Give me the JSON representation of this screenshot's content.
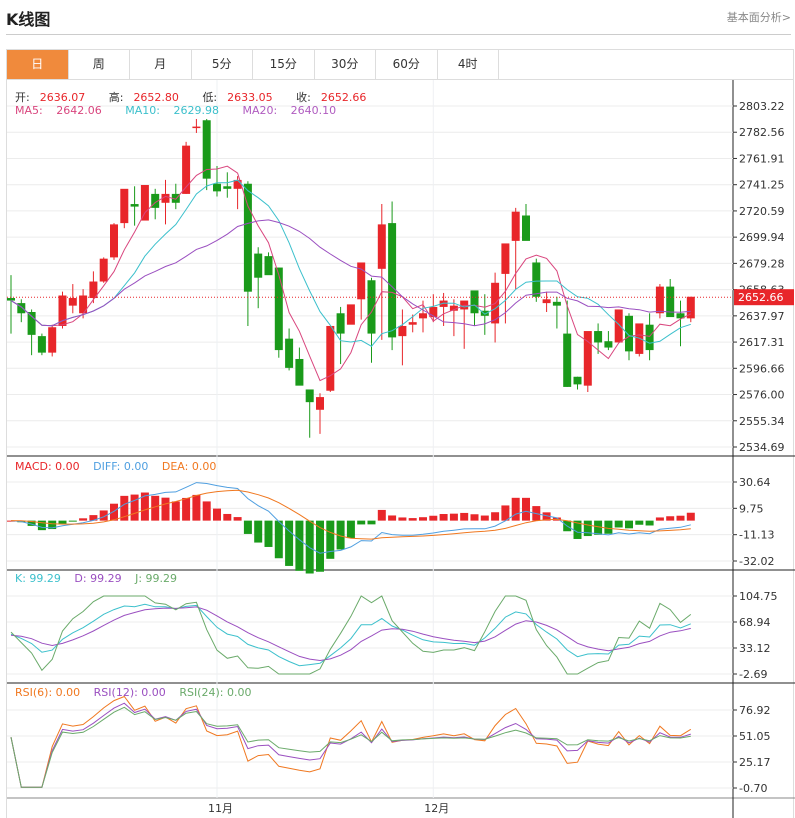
{
  "header": {
    "title": "K线图",
    "link_label": "基本面分析>"
  },
  "tabs": [
    {
      "label": "日",
      "active": true
    },
    {
      "label": "周"
    },
    {
      "label": "月"
    },
    {
      "label": "5分"
    },
    {
      "label": "15分"
    },
    {
      "label": "30分"
    },
    {
      "label": "60分"
    },
    {
      "label": "4时"
    }
  ],
  "ohlc_legend": {
    "open_label": "开:",
    "open": "2636.07",
    "high_label": "高:",
    "high": "2652.80",
    "low_label": "低:",
    "low": "2633.05",
    "close_label": "收:",
    "close": "2652.66"
  },
  "ma_legend": {
    "ma5_label": "MA5:",
    "ma5": "2642.06",
    "ma10_label": "MA10:",
    "ma10": "2629.98",
    "ma20_label": "MA20:",
    "ma20": "2640.10"
  },
  "macd_legend": {
    "macd": "MACD: 0.00",
    "diff": "DIFF: 0.00",
    "dea": "DEA: 0.00"
  },
  "kdj_legend": {
    "k": "K: 99.29",
    "d": "D: 99.29",
    "j": "J: 99.29"
  },
  "rsi_legend": {
    "rsi6": "RSI(6): 0.00",
    "rsi12": "RSI(12): 0.00",
    "rsi24": "RSI(24): 0.00"
  },
  "colors": {
    "up": "#e8262a",
    "down": "#1a9a1a",
    "accent": "#f08a3c",
    "ma5": "#d9467e",
    "ma10": "#3cc0cc",
    "ma20": "#9a4fc0",
    "diff": "#4f9fe0",
    "dea": "#f07820",
    "k": "#3cc0cc",
    "d": "#9a4fc0",
    "j": "#6aaa6a",
    "rsi6": "#f07820",
    "rsi12": "#9a4fc0",
    "rsi24": "#6aaa6a"
  },
  "chart_data": [
    {
      "type": "candlestick",
      "title": "K线图 (日)",
      "y_ticks": [
        "2803.22",
        "2782.56",
        "2761.91",
        "2741.25",
        "2720.59",
        "2699.94",
        "2679.28",
        "2658.63",
        "2637.97",
        "2617.31",
        "2596.66",
        "2576.00",
        "2555.34",
        "2534.69"
      ],
      "current_price": "2652.66",
      "x_labels": [
        {
          "label": "11月",
          "index": 20
        },
        {
          "label": "12月",
          "index": 41
        }
      ],
      "candles": [
        [
          2652,
          2670,
          2624,
          2650
        ],
        [
          2648,
          2651,
          2633,
          2640
        ],
        [
          2641,
          2643,
          2607,
          2623
        ],
        [
          2622,
          2624,
          2607,
          2609
        ],
        [
          2609,
          2631,
          2606,
          2629
        ],
        [
          2630,
          2657,
          2628,
          2654
        ],
        [
          2646,
          2663,
          2640,
          2652
        ],
        [
          2640,
          2659,
          2636,
          2654
        ],
        [
          2652,
          2673,
          2648,
          2665
        ],
        [
          2665,
          2684,
          2664,
          2683
        ],
        [
          2684,
          2711,
          2682,
          2710
        ],
        [
          2711,
          2737,
          2707,
          2738
        ],
        [
          2726,
          2740,
          2709,
          2724
        ],
        [
          2713,
          2741,
          2714,
          2741
        ],
        [
          2734,
          2738,
          2714,
          2723
        ],
        [
          2727,
          2745,
          2710,
          2734
        ],
        [
          2734,
          2742,
          2722,
          2727
        ],
        [
          2734,
          2775,
          2734,
          2772
        ],
        [
          2787,
          2793,
          2782,
          2787
        ],
        [
          2792,
          2793,
          2737,
          2746
        ],
        [
          2742,
          2756,
          2732,
          2736
        ],
        [
          2740,
          2751,
          2731,
          2738
        ],
        [
          2738,
          2748,
          2722,
          2745
        ],
        [
          2742,
          2744,
          2630,
          2657
        ],
        [
          2687,
          2692,
          2644,
          2668
        ],
        [
          2685,
          2688,
          2678,
          2670
        ],
        [
          2676,
          2676,
          2605,
          2611
        ],
        [
          2620,
          2628,
          2595,
          2597
        ],
        [
          2604,
          2613,
          2588,
          2583
        ],
        [
          2580,
          2579,
          2542,
          2570
        ],
        [
          2564,
          2577,
          2545,
          2574
        ],
        [
          2579,
          2610,
          2578,
          2630
        ],
        [
          2640,
          2645,
          2600,
          2624
        ],
        [
          2631,
          2646,
          2634,
          2647
        ],
        [
          2651,
          2668,
          2635,
          2680
        ],
        [
          2666,
          2668,
          2601,
          2624
        ],
        [
          2675,
          2726,
          2619,
          2710
        ],
        [
          2711,
          2728,
          2611,
          2621
        ],
        [
          2622,
          2643,
          2599,
          2630
        ],
        [
          2631,
          2639,
          2625,
          2633
        ],
        [
          2636,
          2650,
          2625,
          2640
        ],
        [
          2637,
          2655,
          2633,
          2645
        ],
        [
          2645,
          2656,
          2630,
          2650
        ],
        [
          2642,
          2651,
          2622,
          2646
        ],
        [
          2643,
          2648,
          2612,
          2650
        ],
        [
          2658,
          2657,
          2630,
          2640
        ],
        [
          2642,
          2655,
          2623,
          2638
        ],
        [
          2632,
          2672,
          2617,
          2664
        ],
        [
          2671,
          2690,
          2632,
          2695
        ],
        [
          2697,
          2723,
          2659,
          2720
        ],
        [
          2717,
          2726,
          2709,
          2697
        ],
        [
          2680,
          2683,
          2649,
          2653
        ],
        [
          2648,
          2657,
          2641,
          2651
        ],
        [
          2649,
          2653,
          2628,
          2646
        ],
        [
          2624,
          2650,
          2582,
          2582
        ],
        [
          2590,
          2590,
          2580,
          2584
        ],
        [
          2583,
          2622,
          2578,
          2626
        ],
        [
          2626,
          2632,
          2608,
          2617
        ],
        [
          2618,
          2626,
          2611,
          2613
        ],
        [
          2617,
          2639,
          2618,
          2643
        ],
        [
          2638,
          2640,
          2603,
          2610
        ],
        [
          2608,
          2612,
          2606,
          2632
        ],
        [
          2631,
          2640,
          2603,
          2611
        ],
        [
          2640,
          2663,
          2636,
          2661
        ],
        [
          2661,
          2667,
          2640,
          2637
        ],
        [
          2640,
          2650,
          2614,
          2636
        ],
        [
          2636,
          2653,
          2633,
          2653
        ]
      ]
    },
    {
      "type": "bar+line",
      "title": "MACD",
      "y_ticks": [
        "30.64",
        "9.75",
        "-11.13",
        "-32.02"
      ],
      "legend": [
        "MACD: 0.00",
        "DIFF: 0.00",
        "DEA: 0.00"
      ]
    },
    {
      "type": "line",
      "title": "KDJ",
      "y_ticks": [
        "104.75",
        "68.94",
        "33.12",
        "-2.69"
      ],
      "legend": [
        "K: 99.29",
        "D: 99.29",
        "J: 99.29"
      ]
    },
    {
      "type": "line",
      "title": "RSI",
      "y_ticks": [
        "76.92",
        "51.05",
        "25.17",
        "-0.70"
      ],
      "legend": [
        "RSI(6): 0.00",
        "RSI(12): 0.00",
        "RSI(24): 0.00"
      ],
      "x_labels": [
        "11月",
        "12月"
      ]
    }
  ]
}
